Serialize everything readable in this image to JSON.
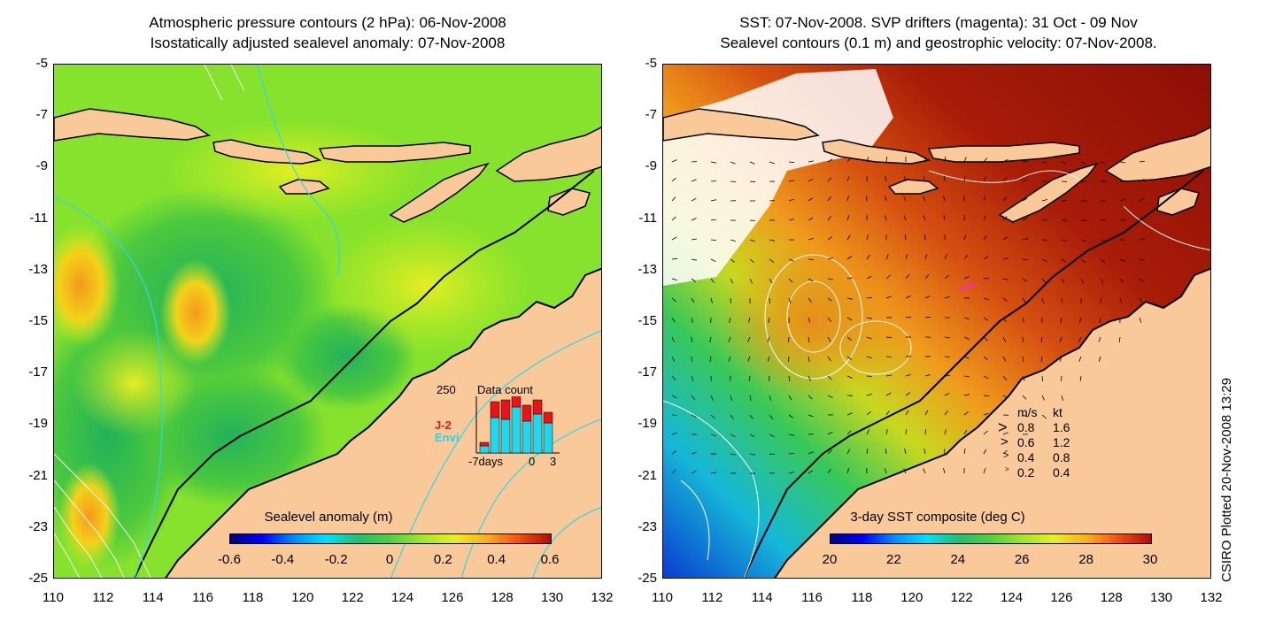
{
  "left": {
    "title_line1": "Atmospheric pressure contours (2 hPa): 06-Nov-2008",
    "title_line2": "Isostatically adjusted sealevel anomaly: 07-Nov-2008",
    "colorbar_label": "Sealevel anomaly (m)",
    "colorbar_ticks": [
      "-0.6",
      "-0.4",
      "-0.2",
      "0",
      "0.2",
      "0.4",
      "0.6"
    ],
    "inset": {
      "max_label": "250",
      "title": "Data count",
      "series1": "J-2",
      "series2": "Envi",
      "xlabel_left": "-7days",
      "xlabel_mid": "0",
      "xlabel_right": "3",
      "colors": {
        "J-2": "#e8141c",
        "Envi": "#22d6ec"
      }
    }
  },
  "right": {
    "title_line1": "SST: 07-Nov-2008. SVP drifters (magenta): 31 Oct - 09 Nov",
    "title_line2": "Sealevel contours (0.1 m) and geostrophic velocity: 07-Nov-2008.",
    "colorbar_label": "3-day SST composite (deg C)",
    "colorbar_ticks": [
      "20",
      "22",
      "24",
      "26",
      "28",
      "30"
    ],
    "velocity_legend": {
      "header_ms": "m/s",
      "header_kt": "kt",
      "rows": [
        {
          "ms": "0.8",
          "kt": "1.6"
        },
        {
          "ms": "0.6",
          "kt": "1.2"
        },
        {
          "ms": "0.4",
          "kt": "0.8"
        },
        {
          "ms": "0.2",
          "kt": "0.4"
        }
      ]
    }
  },
  "y_ticks": [
    "-5",
    "-7",
    "-9",
    "-11",
    "-13",
    "-15",
    "-17",
    "-19",
    "-21",
    "-23",
    "-25"
  ],
  "x_ticks": [
    "110",
    "112",
    "114",
    "116",
    "118",
    "120",
    "122",
    "124",
    "126",
    "128",
    "130",
    "132"
  ],
  "credit": "CSIRO Plotted 20-Nov-2008 13:29",
  "colors": {
    "land": "#f9c99a",
    "coast": "#000000",
    "ssh_mid": "#8ee62a",
    "sst_warm": "#9a1208"
  }
}
